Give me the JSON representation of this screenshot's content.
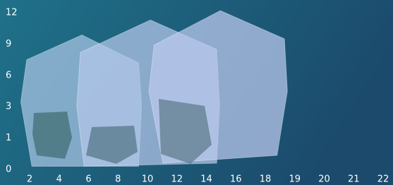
{
  "chart_data": {
    "type": "polygon",
    "xticks": [
      2,
      4,
      6,
      8,
      10,
      12,
      14,
      16,
      18,
      19,
      20,
      21,
      22
    ],
    "yticks": [
      0,
      1,
      3,
      6,
      9,
      12
    ],
    "grid": true,
    "series": [
      {
        "color": "#a9c6e4",
        "x": [
          5.55,
          9.4,
          9.6,
          9.4,
          2.15,
          1.4,
          1.8
        ],
        "y": [
          9.87,
          7.2,
          3.1,
          0.1,
          0.1,
          3.47,
          7.5
        ]
      },
      {
        "color": "#b4c8ea",
        "x": [
          10.2,
          14.7,
          14.9,
          14.7,
          5.7,
          5.2,
          5.45
        ],
        "y": [
          11.3,
          8.5,
          3.1,
          0.2,
          0.1,
          3.1,
          8.2
        ]
      },
      {
        "color": "#bccbee",
        "x": [
          14.95,
          18.65,
          18.75,
          18.4,
          11.05,
          10.1,
          10.45
        ],
        "y": [
          12.2,
          9.5,
          4.5,
          0.45,
          0.2,
          4.5,
          8.9
        ]
      }
    ]
  }
}
